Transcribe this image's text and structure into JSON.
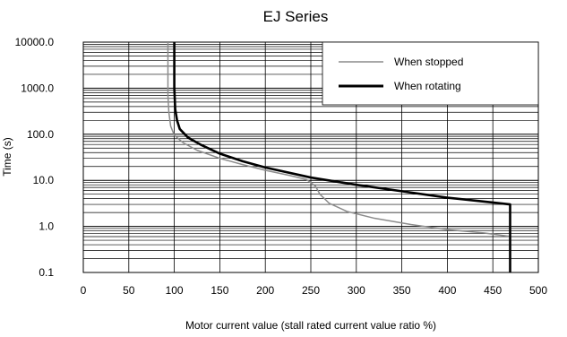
{
  "chart_data": {
    "type": "line",
    "title": "EJ Series",
    "xlabel": "Motor current value (stall rated current value ratio %)",
    "ylabel": "Time (s)",
    "xlim": [
      0,
      500
    ],
    "ylim": [
      0.1,
      10000
    ],
    "y_scale": "log",
    "grid": true,
    "legend_position": "top-right",
    "x_ticks": [
      0,
      50,
      100,
      150,
      200,
      250,
      300,
      350,
      400,
      450,
      500
    ],
    "y_ticks": [
      {
        "value": 0.1,
        "label": "0.1"
      },
      {
        "value": 1,
        "label": "1.0"
      },
      {
        "value": 10,
        "label": "10.0"
      },
      {
        "value": 100,
        "label": "100.0"
      },
      {
        "value": 1000,
        "label": "1000.0"
      },
      {
        "value": 10000,
        "label": "10000.0"
      }
    ],
    "series": [
      {
        "name": "When stopped",
        "color": "#8c8c8c",
        "x": [
          93,
          93,
          94,
          96,
          100,
          110,
          125,
          150,
          175,
          200,
          225,
          245,
          255,
          260,
          270,
          290,
          320,
          360,
          400,
          440,
          465,
          470
        ],
        "y": [
          10000,
          700,
          300,
          150,
          95,
          65,
          45,
          30,
          22,
          16.5,
          13,
          10.5,
          7.5,
          5,
          3.2,
          2.1,
          1.5,
          1.1,
          0.85,
          0.72,
          0.62,
          0.6
        ]
      },
      {
        "name": "When rotating",
        "color": "#000000",
        "x": [
          100,
          100,
          101,
          103,
          106,
          115,
          130,
          150,
          175,
          200,
          250,
          300,
          350,
          400,
          450,
          469,
          469,
          469
        ],
        "y": [
          10000,
          1000,
          350,
          200,
          130,
          85,
          58,
          38,
          26,
          19,
          11.5,
          8,
          5.8,
          4.2,
          3.3,
          3.0,
          1.0,
          0.1
        ]
      }
    ]
  }
}
